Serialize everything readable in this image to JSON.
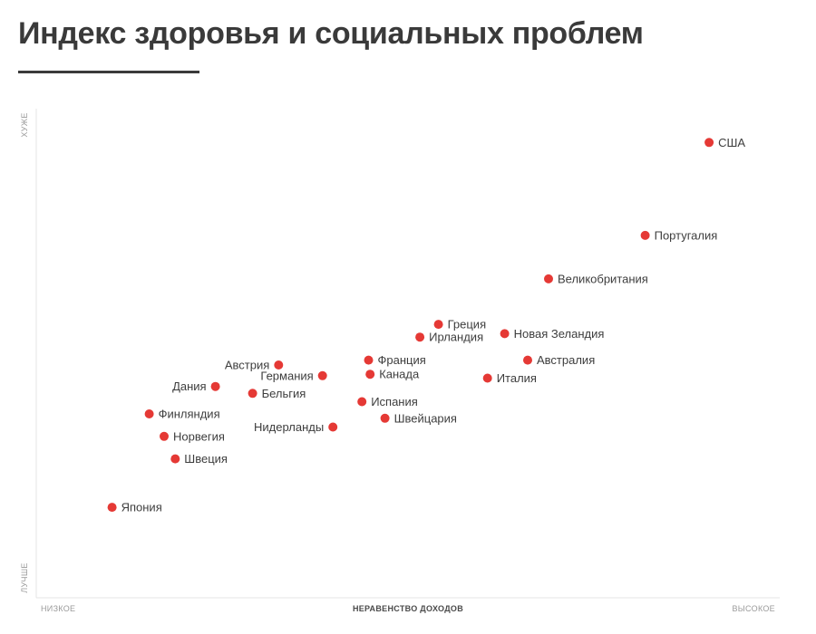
{
  "title": "Индекс здоровья и социальных проблем",
  "chart_data": {
    "type": "scatter",
    "title": "Индекс здоровья и социальных проблем",
    "xlabel": "НЕРАВЕНСТВО ДОХОДОВ",
    "x_low_label": "НИЗКОЕ",
    "x_high_label": "ВЫСОКОЕ",
    "y_low_label": "ЛУЧШЕ",
    "y_high_label": "ХУЖЕ",
    "xlim": [
      0,
      100
    ],
    "ylim": [
      0,
      100
    ],
    "grid": false,
    "point_color": "#e53935",
    "points": [
      {
        "name": "США",
        "x": 90.5,
        "y": 93.1
      },
      {
        "name": "Португалия",
        "x": 81.9,
        "y": 74.1
      },
      {
        "name": "Великобритания",
        "x": 68.9,
        "y": 65.2
      },
      {
        "name": "Греция",
        "x": 54.1,
        "y": 55.9
      },
      {
        "name": "Новая Зеландия",
        "x": 63.0,
        "y": 54.0
      },
      {
        "name": "Ирландия",
        "x": 51.6,
        "y": 53.3
      },
      {
        "name": "Австралия",
        "x": 66.1,
        "y": 48.6
      },
      {
        "name": "Франция",
        "x": 44.7,
        "y": 48.6
      },
      {
        "name": "Австрия",
        "x": 32.6,
        "y": 47.6
      },
      {
        "name": "Канада",
        "x": 44.9,
        "y": 45.7
      },
      {
        "name": "Германия",
        "x": 38.5,
        "y": 45.4
      },
      {
        "name": "Италия",
        "x": 60.7,
        "y": 44.9
      },
      {
        "name": "Дания",
        "x": 24.1,
        "y": 43.2
      },
      {
        "name": "Бельгия",
        "x": 29.1,
        "y": 41.8
      },
      {
        "name": "Испания",
        "x": 43.8,
        "y": 40.1
      },
      {
        "name": "Финляндия",
        "x": 15.2,
        "y": 37.6
      },
      {
        "name": "Швейцария",
        "x": 46.9,
        "y": 36.7
      },
      {
        "name": "Нидерланды",
        "x": 39.9,
        "y": 34.9
      },
      {
        "name": "Норвегия",
        "x": 17.2,
        "y": 33.0
      },
      {
        "name": "Швеция",
        "x": 18.7,
        "y": 28.4
      },
      {
        "name": "Япония",
        "x": 10.2,
        "y": 18.5
      }
    ]
  }
}
